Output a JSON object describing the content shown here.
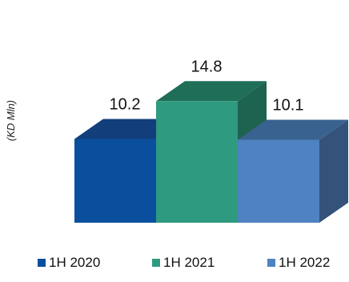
{
  "chart_data": {
    "type": "bar",
    "style": "3d",
    "categories": [
      "1H 2020",
      "1H 2021",
      "1H 2022"
    ],
    "values": [
      10.2,
      14.8,
      10.1
    ],
    "data_labels": [
      "10.2",
      "14.8",
      "10.1"
    ],
    "ylabel": "(KD Mln)",
    "xlabel": "",
    "title": "",
    "ylim": [
      0,
      15
    ],
    "grid": false,
    "legend_position": "bottom",
    "colors": {
      "front": [
        "#0a4f9e",
        "#2e9a7f",
        "#4e82c0"
      ],
      "top": [
        "#123f7c",
        "#1f6e58",
        "#3a6290"
      ],
      "side": [
        "#0d3a6e",
        "#1e6350",
        "#34527a"
      ]
    }
  }
}
